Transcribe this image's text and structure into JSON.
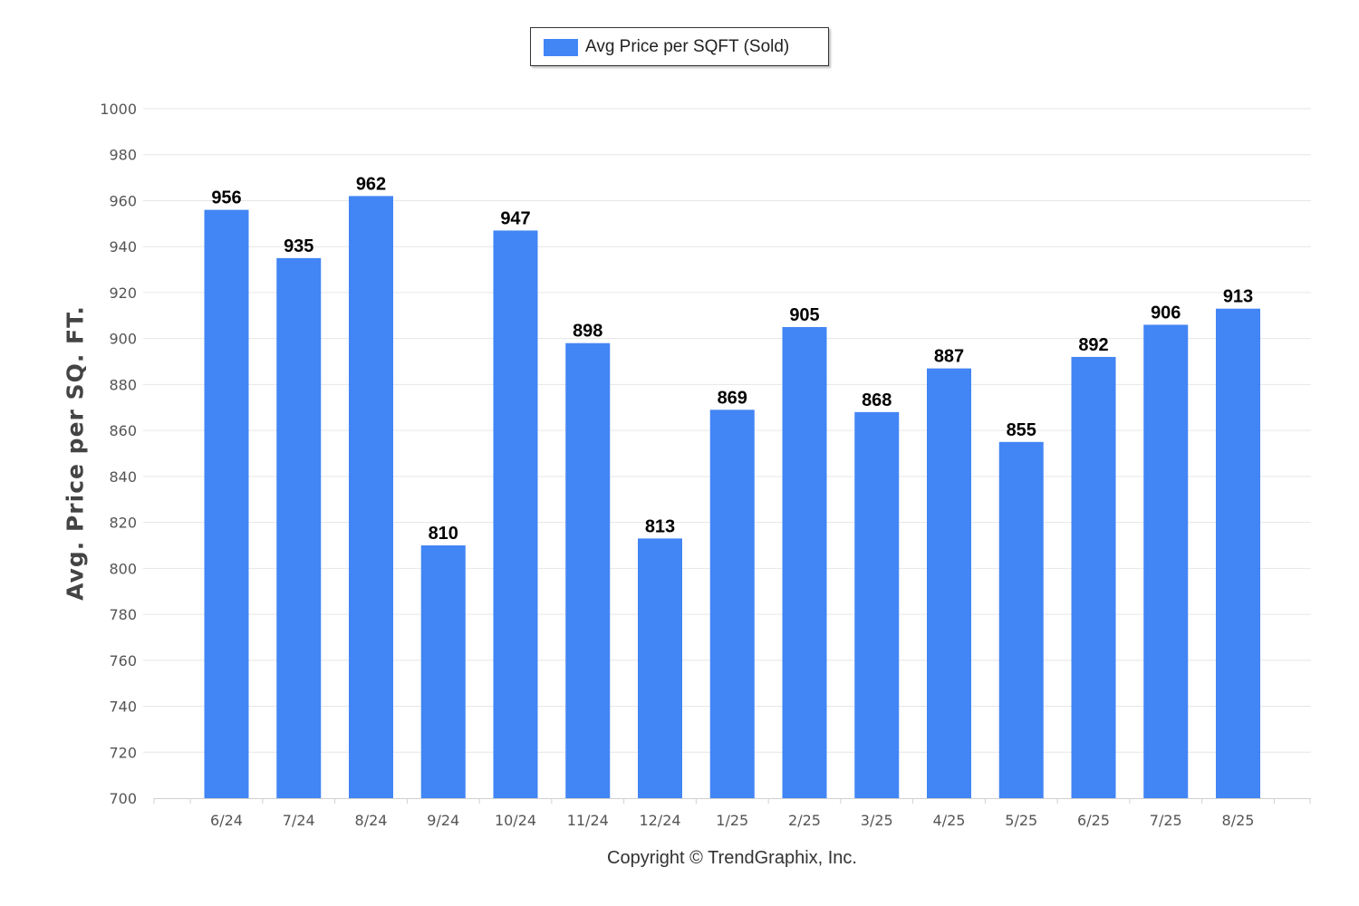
{
  "chart_data": {
    "type": "bar",
    "legend": {
      "label": "Avg Price per SQFT (Sold)",
      "position": "top-center"
    },
    "ylabel": "Avg. Price per SQ. FT.",
    "xlabel": "",
    "ylim": [
      700,
      1000
    ],
    "ytick_step": 20,
    "grid": true,
    "categories": [
      "6/24",
      "7/24",
      "8/24",
      "9/24",
      "10/24",
      "11/24",
      "12/24",
      "1/25",
      "2/25",
      "3/25",
      "4/25",
      "5/25",
      "6/25",
      "7/25",
      "8/25"
    ],
    "values": [
      956,
      935,
      962,
      810,
      947,
      898,
      813,
      869,
      905,
      868,
      887,
      855,
      892,
      906,
      913
    ],
    "bar_color": "#4285f4"
  },
  "footer": {
    "copyright": "Copyright © TrendGraphix, Inc."
  }
}
